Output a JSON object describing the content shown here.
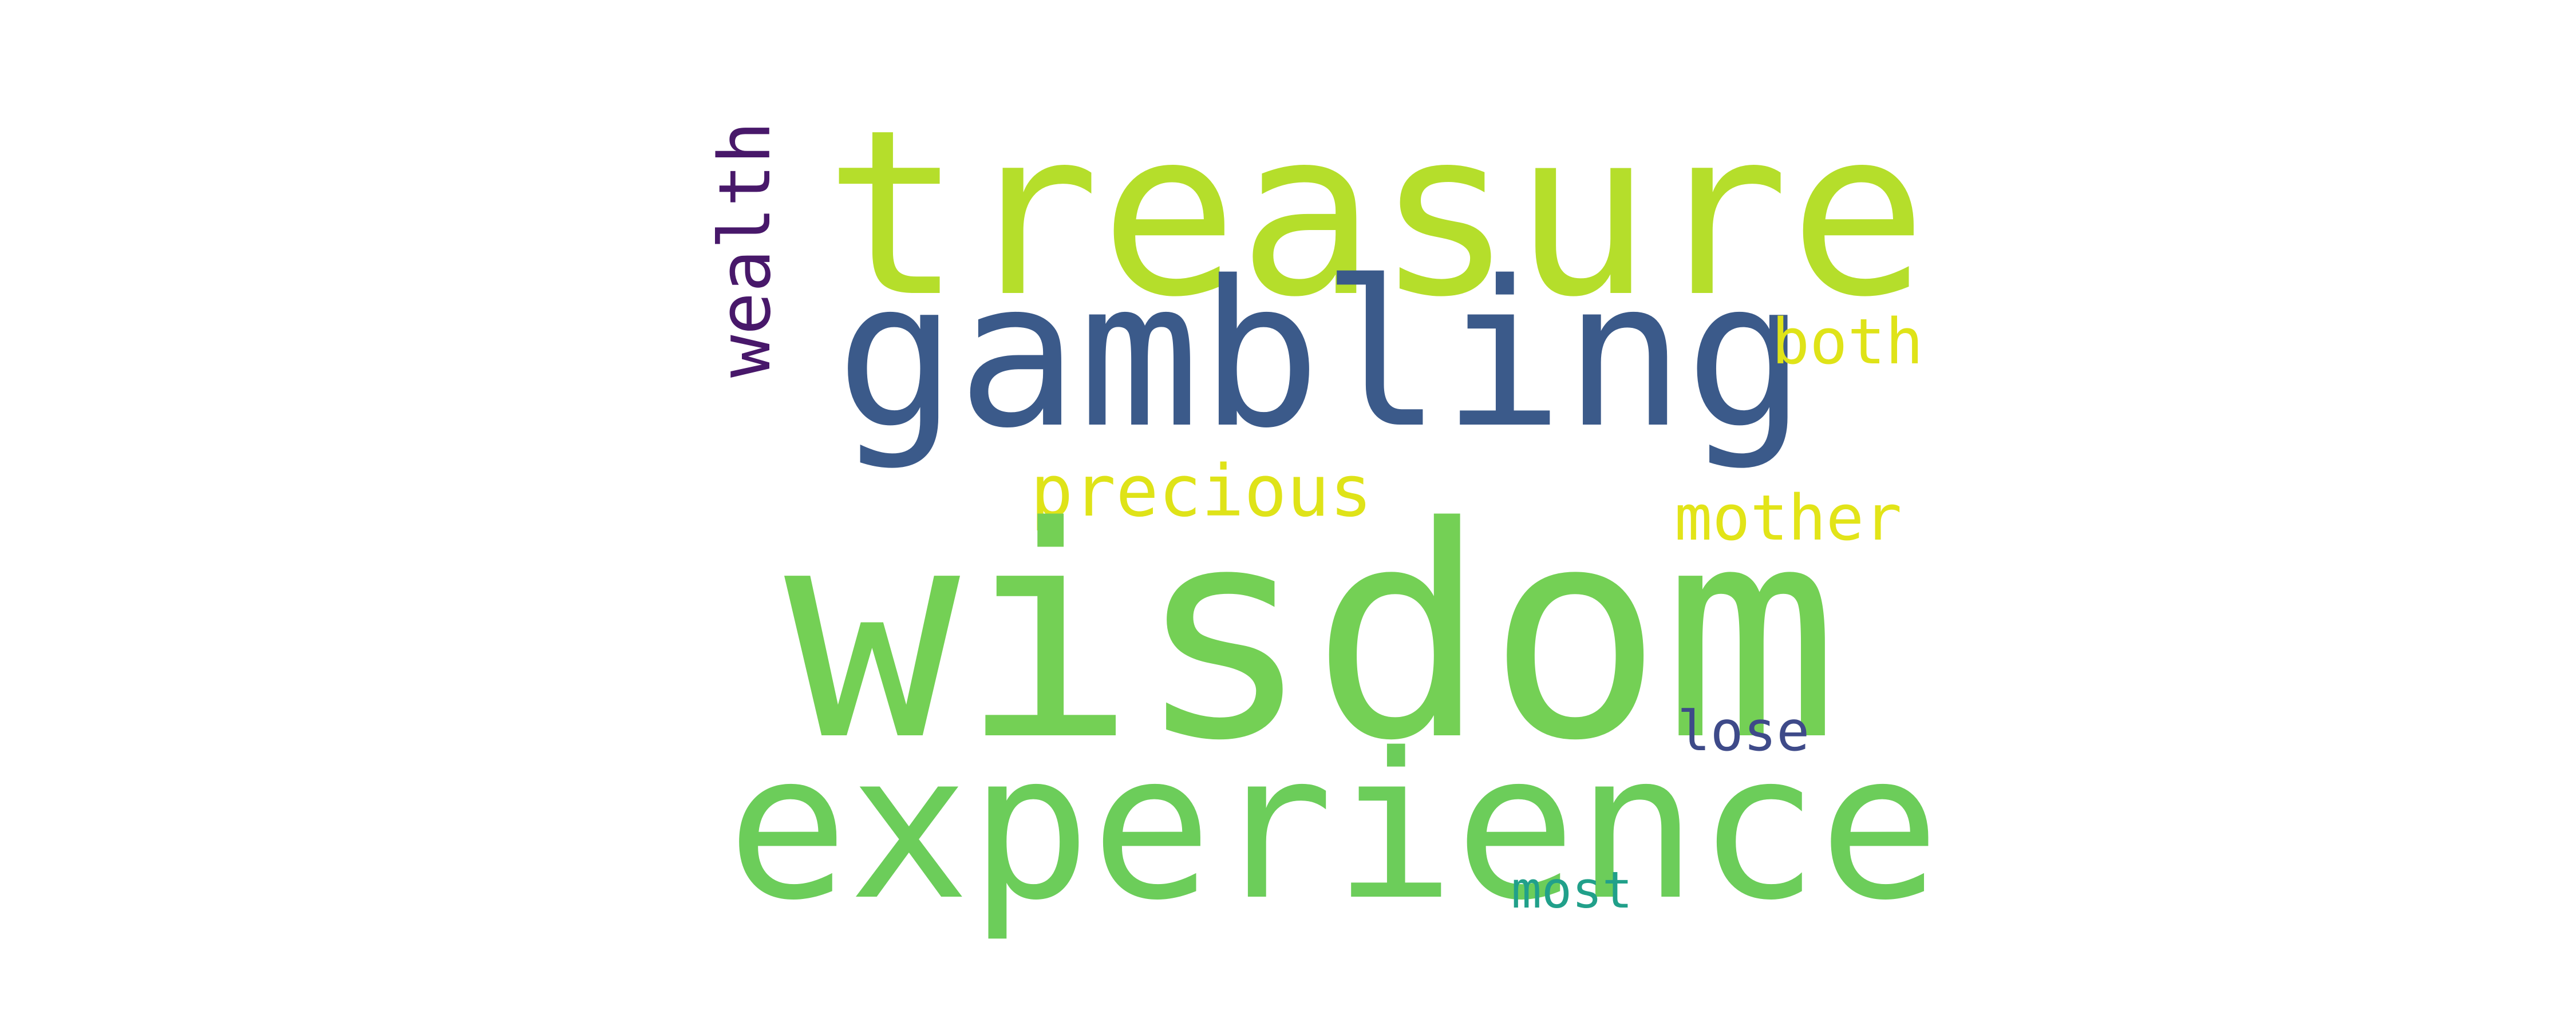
{
  "words": {
    "treasure": {
      "text": "treasure",
      "color": "#b5de2b"
    },
    "gambling": {
      "text": "gambling",
      "color": "#3b5a8a"
    },
    "wealth": {
      "text": "wealth",
      "color": "#48186a"
    },
    "both": {
      "text": "both",
      "color": "#dfe318"
    },
    "precious": {
      "text": "precious",
      "color": "#dfe318"
    },
    "mother": {
      "text": "mother",
      "color": "#e2e418"
    },
    "wisdom": {
      "text": "wisdom",
      "color": "#74d055"
    },
    "lose": {
      "text": "lose",
      "color": "#3e4a89"
    },
    "experience": {
      "text": "experience",
      "color": "#6ccd5a"
    },
    "most": {
      "text": "most",
      "color": "#21a08a"
    },
    "dot": {
      "text": ".",
      "color": "#74d055"
    }
  }
}
